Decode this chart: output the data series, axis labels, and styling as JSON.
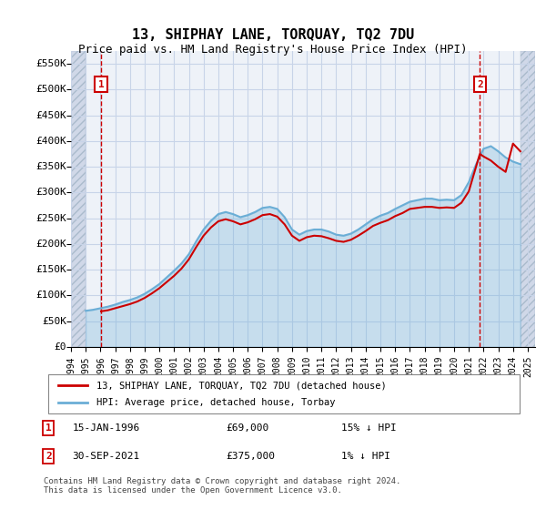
{
  "title": "13, SHIPHAY LANE, TORQUAY, TQ2 7DU",
  "subtitle": "Price paid vs. HM Land Registry's House Price Index (HPI)",
  "legend_line1": "13, SHIPHAY LANE, TORQUAY, TQ2 7DU (detached house)",
  "legend_line2": "HPI: Average price, detached house, Torbay",
  "note1": "1    15-JAN-1996         £69,000         15% ↓ HPI",
  "note2": "2    30-SEP-2021         £375,000         1% ↓ HPI",
  "copyright": "Contains HM Land Registry data © Crown copyright and database right 2024.\nThis data is licensed under the Open Government Licence v3.0.",
  "ylim": [
    0,
    575000
  ],
  "yticks": [
    0,
    50000,
    100000,
    150000,
    200000,
    250000,
    300000,
    350000,
    400000,
    450000,
    500000,
    550000
  ],
  "ytick_labels": [
    "£0",
    "£50K",
    "£100K",
    "£150K",
    "£200K",
    "£250K",
    "£300K",
    "£350K",
    "£400K",
    "£450K",
    "£500K",
    "£550K"
  ],
  "xlim_start": 1994.0,
  "xlim_end": 2025.5,
  "hpi_color": "#6baed6",
  "property_color": "#cc0000",
  "hatch_color": "#d0d8e8",
  "grid_color": "#c8d4e8",
  "bg_color": "#eef2f8",
  "point1_x": 1996.04,
  "point1_y": 69000,
  "point2_x": 2021.75,
  "point2_y": 375000,
  "hpi_data_x": [
    1995.0,
    1995.5,
    1996.0,
    1996.5,
    1997.0,
    1997.5,
    1998.0,
    1998.5,
    1999.0,
    1999.5,
    2000.0,
    2000.5,
    2001.0,
    2001.5,
    2002.0,
    2002.5,
    2003.0,
    2003.5,
    2004.0,
    2004.5,
    2005.0,
    2005.5,
    2006.0,
    2006.5,
    2007.0,
    2007.5,
    2008.0,
    2008.5,
    2009.0,
    2009.5,
    2010.0,
    2010.5,
    2011.0,
    2011.5,
    2012.0,
    2012.5,
    2013.0,
    2013.5,
    2014.0,
    2014.5,
    2015.0,
    2015.5,
    2016.0,
    2016.5,
    2017.0,
    2017.5,
    2018.0,
    2018.5,
    2019.0,
    2019.5,
    2020.0,
    2020.5,
    2021.0,
    2021.5,
    2022.0,
    2022.5,
    2023.0,
    2023.5,
    2024.0,
    2024.5
  ],
  "hpi_data_y": [
    70000,
    72000,
    75000,
    78000,
    82000,
    87000,
    91000,
    96000,
    103000,
    112000,
    122000,
    135000,
    148000,
    162000,
    180000,
    205000,
    228000,
    245000,
    258000,
    262000,
    258000,
    252000,
    256000,
    262000,
    270000,
    272000,
    268000,
    252000,
    228000,
    218000,
    225000,
    228000,
    228000,
    224000,
    218000,
    216000,
    220000,
    228000,
    238000,
    248000,
    255000,
    260000,
    268000,
    275000,
    282000,
    285000,
    288000,
    288000,
    285000,
    286000,
    285000,
    295000,
    320000,
    355000,
    385000,
    390000,
    380000,
    368000,
    360000,
    355000
  ],
  "prop_data_x": [
    1996.04,
    1996.5,
    1997.0,
    1997.5,
    1998.0,
    1998.5,
    1999.0,
    1999.5,
    2000.0,
    2000.5,
    2001.0,
    2001.5,
    2002.0,
    2002.5,
    2003.0,
    2003.5,
    2004.0,
    2004.5,
    2005.0,
    2005.5,
    2006.0,
    2006.5,
    2007.0,
    2007.5,
    2008.0,
    2008.5,
    2009.0,
    2009.5,
    2010.0,
    2010.5,
    2011.0,
    2011.5,
    2012.0,
    2012.5,
    2013.0,
    2013.5,
    2014.0,
    2014.5,
    2015.0,
    2015.5,
    2016.0,
    2016.5,
    2017.0,
    2017.5,
    2018.0,
    2018.5,
    2019.0,
    2019.5,
    2020.0,
    2020.5,
    2021.0,
    2021.75,
    2022.0,
    2022.5,
    2023.0,
    2023.5,
    2024.0,
    2024.5
  ],
  "prop_data_y": [
    69000,
    71000,
    75000,
    79000,
    83000,
    88000,
    95000,
    104000,
    114000,
    126000,
    138000,
    152000,
    170000,
    194000,
    216000,
    232000,
    244000,
    248000,
    244000,
    238000,
    242000,
    248000,
    256000,
    258000,
    253000,
    238000,
    216000,
    206000,
    213000,
    216000,
    215000,
    211000,
    206000,
    204000,
    208000,
    216000,
    225000,
    235000,
    241000,
    246000,
    254000,
    260000,
    268000,
    270000,
    272000,
    272000,
    270000,
    271000,
    270000,
    280000,
    302000,
    375000,
    370000,
    362000,
    350000,
    340000,
    395000,
    380000
  ]
}
